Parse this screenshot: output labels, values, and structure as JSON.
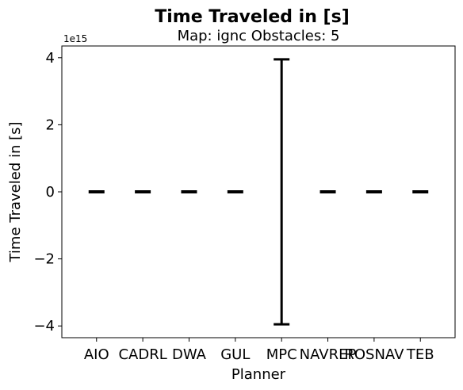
{
  "chart_data": {
    "type": "errorbar",
    "title": "Time Traveled in [s]",
    "subtitle": "Map: ignc Obstacles: 5",
    "xlabel": "Planner",
    "ylabel": "Time Traveled in [s]",
    "y_offset_label": "1e15",
    "y_scale": 1000000000000000.0,
    "ylim": [
      -4.35,
      4.35
    ],
    "yticks": [
      -4,
      -2,
      0,
      2,
      4
    ],
    "ytick_labels": [
      "−4",
      "−2",
      "0",
      "2",
      "4"
    ],
    "grid": false,
    "categories": [
      "AIO",
      "CADRL",
      "DWA",
      "GUL",
      "MPC",
      "NAVREP",
      "ROSNAV",
      "TEB"
    ],
    "series": [
      {
        "mean": [
          0,
          0,
          0,
          0,
          0,
          0,
          0,
          0
        ],
        "lower": [
          0,
          0,
          0,
          0,
          -3.95,
          0,
          0,
          0
        ],
        "upper": [
          0,
          0,
          0,
          0,
          3.95,
          0,
          0,
          0
        ]
      }
    ],
    "color": "#000000"
  }
}
